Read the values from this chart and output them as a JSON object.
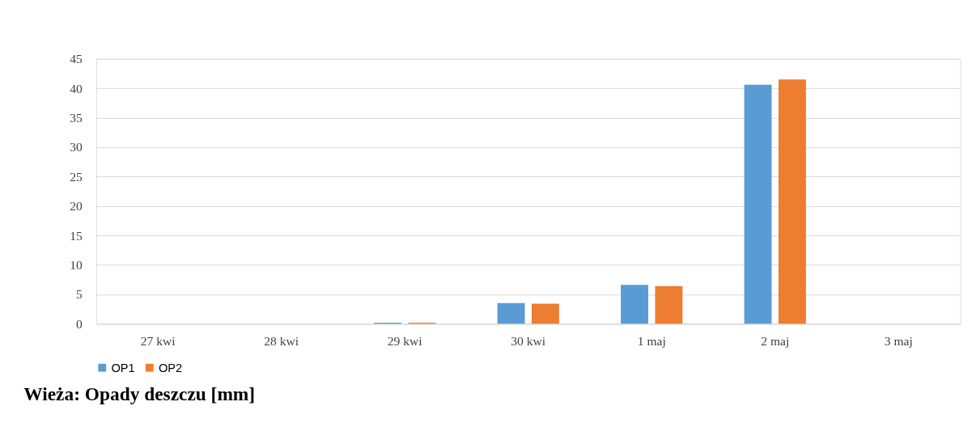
{
  "chart_data": {
    "type": "bar",
    "title": "Wieża: Opady deszczu [mm]",
    "categories": [
      "27 kwi",
      "28 kwi",
      "29 kwi",
      "30 kwi",
      "1 maj",
      "2 maj",
      "3 maj"
    ],
    "series": [
      {
        "name": "OP1",
        "color": "#5b9bd5",
        "values": [
          0,
          0,
          0.2,
          3.5,
          6.6,
          40.6,
          0
        ]
      },
      {
        "name": "OP2",
        "color": "#ed7d31",
        "values": [
          0,
          0,
          0.2,
          3.4,
          6.4,
          41.5,
          0
        ]
      }
    ],
    "ylim": [
      0,
      45
    ],
    "yticks": [
      0,
      5,
      10,
      15,
      20,
      25,
      30,
      35,
      40,
      45
    ],
    "grid": "y",
    "legend": "bottom"
  }
}
